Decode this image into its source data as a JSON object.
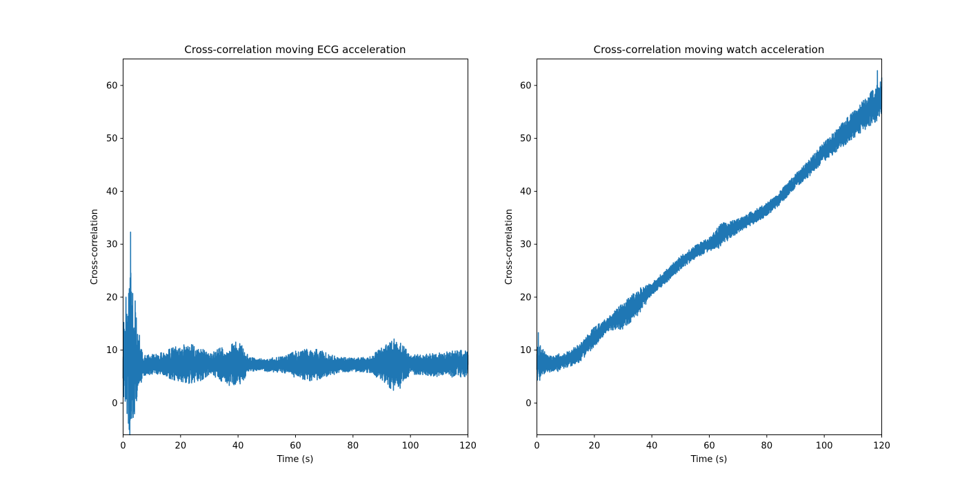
{
  "figure": {
    "background": "#ffffff"
  },
  "chart_data": [
    {
      "type": "line",
      "title": "Cross-correlation moving ECG acceleration",
      "xlabel": "Time (s)",
      "ylabel": "Cross-correlation",
      "xlim": [
        0,
        120
      ],
      "ylim": [
        -6,
        65
      ],
      "xticks": [
        0,
        20,
        40,
        60,
        80,
        100,
        120
      ],
      "yticks": [
        0,
        10,
        20,
        30,
        40,
        50,
        60
      ],
      "grid": false,
      "color": "#1f77b4",
      "series": [
        {
          "trend": [
            [
              0,
              8
            ],
            [
              1,
              9
            ],
            [
              2,
              8
            ],
            [
              3,
              9
            ],
            [
              4,
              8
            ],
            [
              5,
              7.5
            ],
            [
              6,
              7
            ],
            [
              10,
              7.3
            ],
            [
              20,
              7.5
            ],
            [
              30,
              7.3
            ],
            [
              40,
              7.4
            ],
            [
              50,
              7.2
            ],
            [
              60,
              7.3
            ],
            [
              70,
              7.2
            ],
            [
              80,
              7.2
            ],
            [
              90,
              7.3
            ],
            [
              95,
              7.4
            ],
            [
              100,
              7.3
            ],
            [
              110,
              7.2
            ],
            [
              120,
              7.5
            ]
          ],
          "amplitude": [
            [
              0,
              5
            ],
            [
              1,
              8
            ],
            [
              2,
              11
            ],
            [
              2.8,
              13
            ],
            [
              3.5,
              9
            ],
            [
              4.5,
              7
            ],
            [
              5.5,
              4
            ],
            [
              7,
              1.5
            ],
            [
              12,
              1.5
            ],
            [
              18,
              2.5
            ],
            [
              23,
              3
            ],
            [
              27,
              2.5
            ],
            [
              30,
              1.5
            ],
            [
              34,
              2.5
            ],
            [
              38,
              3.5
            ],
            [
              41,
              3
            ],
            [
              44,
              1
            ],
            [
              50,
              1
            ],
            [
              56,
              1.2
            ],
            [
              60,
              2
            ],
            [
              66,
              2.5
            ],
            [
              70,
              2
            ],
            [
              75,
              1.2
            ],
            [
              80,
              1
            ],
            [
              86,
              1.2
            ],
            [
              90,
              2.5
            ],
            [
              94,
              4
            ],
            [
              97,
              3
            ],
            [
              100,
              1.5
            ],
            [
              104,
              1.5
            ],
            [
              110,
              1.8
            ],
            [
              115,
              2
            ],
            [
              120,
              2
            ]
          ],
          "peaks": [
            [
              1.0,
              20
            ],
            [
              2.6,
              32.3
            ],
            [
              2.4,
              -3.3
            ],
            [
              3.2,
              17
            ],
            [
              4.2,
              19.3
            ],
            [
              5.7,
              12.8
            ],
            [
              1.9,
              0
            ],
            [
              4.8,
              1.2
            ],
            [
              94.3,
              12.1
            ],
            [
              96.4,
              2.8
            ]
          ]
        }
      ]
    },
    {
      "type": "line",
      "title": "Cross-correlation moving watch acceleration",
      "xlabel": "Time (s)",
      "ylabel": "Cross-correlation",
      "xlim": [
        0,
        120
      ],
      "ylim": [
        -6,
        65
      ],
      "xticks": [
        0,
        20,
        40,
        60,
        80,
        100,
        120
      ],
      "yticks": [
        0,
        10,
        20,
        30,
        40,
        50,
        60
      ],
      "grid": false,
      "color": "#1f77b4",
      "series": [
        {
          "trend": [
            [
              0,
              8
            ],
            [
              5,
              7.3
            ],
            [
              10,
              8
            ],
            [
              15,
              9.5
            ],
            [
              20,
              12.5
            ],
            [
              25,
              15
            ],
            [
              30,
              16.5
            ],
            [
              35,
              19
            ],
            [
              40,
              21.5
            ],
            [
              45,
              24
            ],
            [
              50,
              26.5
            ],
            [
              55,
              28.5
            ],
            [
              60,
              30
            ],
            [
              65,
              32
            ],
            [
              70,
              33.5
            ],
            [
              75,
              35
            ],
            [
              80,
              36.5
            ],
            [
              85,
              39
            ],
            [
              90,
              42
            ],
            [
              95,
              44.5
            ],
            [
              100,
              47.5
            ],
            [
              105,
              50
            ],
            [
              110,
              52.5
            ],
            [
              115,
              55
            ],
            [
              120,
              57.5
            ]
          ],
          "amplitude": [
            [
              0,
              3
            ],
            [
              3,
              1.5
            ],
            [
              10,
              1.2
            ],
            [
              20,
              1.5
            ],
            [
              25,
              1
            ],
            [
              30,
              2
            ],
            [
              35,
              2
            ],
            [
              40,
              1
            ],
            [
              50,
              1
            ],
            [
              60,
              1
            ],
            [
              64,
              1.8
            ],
            [
              70,
              1
            ],
            [
              80,
              1
            ],
            [
              90,
              1
            ],
            [
              100,
              1.5
            ],
            [
              110,
              2
            ],
            [
              120,
              2.8
            ]
          ],
          "peaks": [
            [
              0.5,
              13.3
            ],
            [
              1.0,
              4.3
            ],
            [
              118.5,
              62.8
            ],
            [
              117.5,
              53.8
            ],
            [
              120,
              61.5
            ]
          ]
        }
      ]
    }
  ]
}
